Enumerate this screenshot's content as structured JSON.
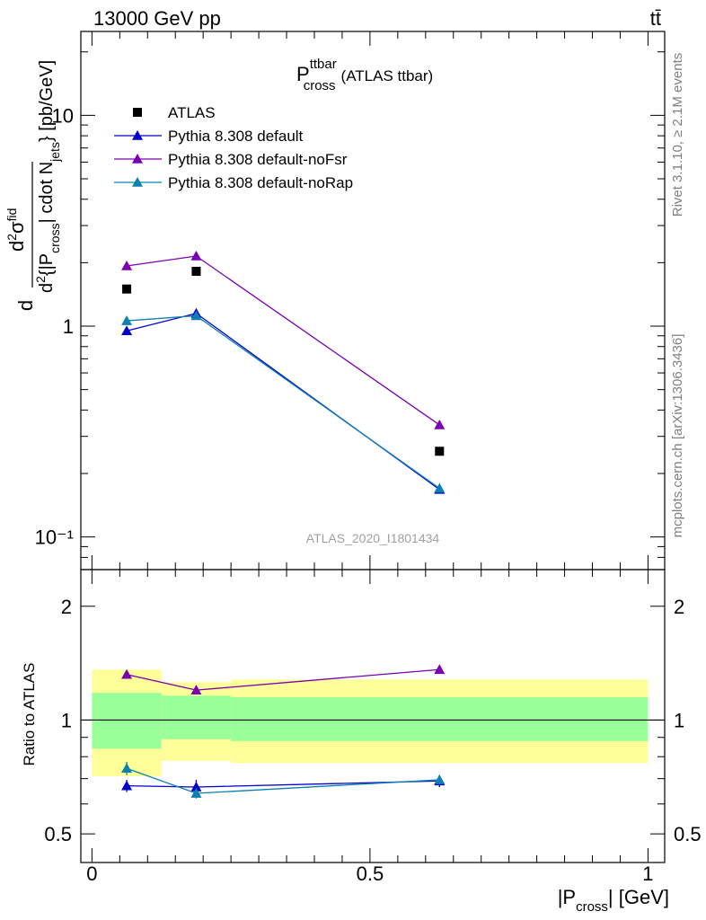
{
  "header": {
    "left": "13000 GeV pp",
    "right": "tt̄"
  },
  "side_labels": {
    "rivet": "Rivet 3.1.10, ≥ 2.1M events",
    "mcplots": "mcplots.cern.ch [arXiv:1306.3436]"
  },
  "watermark": "ATLAS_2020_I1801434",
  "chart_data": [
    {
      "type": "scatter",
      "panel": "main",
      "title": "P_cross^ttbar (ATLAS ttbar)",
      "title_main": "P",
      "title_sup": "ttbar",
      "title_sub": "cross",
      "title_suffix": "(ATLAS ttbar)",
      "ylabel": "d²σ^fid / d² {|P_cross| cdot N_jets} [pb/GeV]",
      "ylabel_parts": {
        "d": "d",
        "num_sup": "2",
        "num_sigma": "σ",
        "num_fid": "fid",
        "den_d": "d",
        "den_sup": "2",
        "den_a": "{|P",
        "den_sub1": "cross",
        "den_b": "| cdot N",
        "den_sub2": "jets",
        "den_c": "} [pb/GeV]"
      },
      "yscale": "log",
      "ylim": [
        0.07,
        25
      ],
      "y_tick_labels": [
        "10⁻¹",
        "1",
        "10"
      ],
      "y_tick_values": [
        0.1,
        1,
        10
      ],
      "x": [
        0.0625,
        0.1875,
        0.625
      ],
      "bins": [
        [
          0,
          0.125
        ],
        [
          0.125,
          0.25
        ],
        [
          0.25,
          1.0
        ]
      ],
      "legend_position": "top-left",
      "series": [
        {
          "name": "ATLAS",
          "color": "#000000",
          "marker": "square",
          "connect": false,
          "values": [
            1.5,
            1.82,
            0.255
          ]
        },
        {
          "name": "Pythia 8.308 default",
          "color": "#0000cc",
          "marker": "triangle",
          "connect": true,
          "values": [
            0.95,
            1.15,
            0.168
          ]
        },
        {
          "name": "Pythia 8.308 default-noFsr",
          "color": "#7a00b0",
          "marker": "triangle",
          "connect": true,
          "values": [
            1.93,
            2.15,
            0.34
          ]
        },
        {
          "name": "Pythia 8.308 default-noRap",
          "color": "#0c80b0",
          "marker": "triangle",
          "connect": true,
          "values": [
            1.06,
            1.12,
            0.17
          ]
        }
      ]
    },
    {
      "type": "scatter",
      "panel": "ratio",
      "ylabel": "Ratio to ATLAS",
      "xlabel": "|P_cross| [GeV]",
      "xlabel_parts": {
        "a": "|P",
        "sub": "cross",
        "b": "| [GeV]"
      },
      "xlim": [
        -0.02,
        1.03
      ],
      "x_tick_labels": [
        "0",
        "0.5",
        "1"
      ],
      "x_tick_values": [
        0,
        0.5,
        1
      ],
      "yscale": "log",
      "ylim": [
        0.42,
        2.5
      ],
      "y_tick_labels": [
        "0.5",
        "1",
        "2"
      ],
      "y_tick_values": [
        0.5,
        1,
        2
      ],
      "bands": {
        "yellow_color": "#ffff99",
        "green_color": "#99ff99",
        "total_low": [
          0.71,
          0.78,
          0.77
        ],
        "total_high": [
          1.36,
          1.26,
          1.28
        ],
        "stat_low": [
          0.84,
          0.89,
          0.88
        ],
        "stat_high": [
          1.18,
          1.16,
          1.15
        ]
      },
      "series": [
        {
          "name": "Pythia 8.308 default",
          "color": "#0000cc",
          "values": [
            0.67,
            0.665,
            0.69
          ],
          "errors": [
            0.025,
            0.03,
            0.025
          ]
        },
        {
          "name": "Pythia 8.308 default-noFsr",
          "color": "#7a00b0",
          "values": [
            1.32,
            1.2,
            1.36
          ],
          "errors": [
            0.03,
            0.02,
            0.025
          ]
        },
        {
          "name": "Pythia 8.308 default-noRap",
          "color": "#0c80b0",
          "values": [
            0.745,
            0.64,
            0.695
          ],
          "errors": [
            0.03,
            0.02,
            0.02
          ]
        }
      ]
    }
  ]
}
